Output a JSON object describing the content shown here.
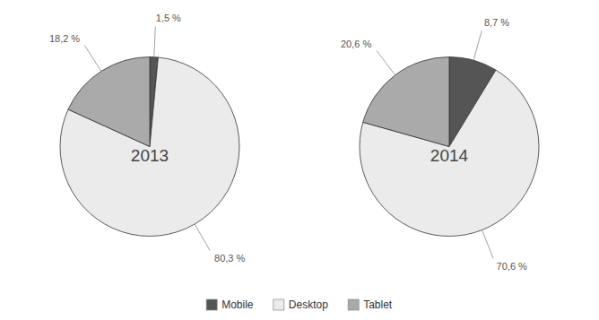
{
  "chart_data": [
    {
      "type": "pie",
      "title": "2013",
      "categories": [
        "Mobile",
        "Desktop",
        "Tablet"
      ],
      "values": [
        1.5,
        80.3,
        18.2
      ],
      "value_labels": [
        "1,5 %",
        "80,3 %",
        "18,2 %"
      ],
      "colors": [
        "#555555",
        "#ebebeb",
        "#aaaaaa"
      ],
      "data_labels": true,
      "legend": "bottom"
    },
    {
      "type": "pie",
      "title": "2014",
      "categories": [
        "Mobile",
        "Desktop",
        "Tablet"
      ],
      "values": [
        8.7,
        70.6,
        20.6
      ],
      "value_labels": [
        "8,7 %",
        "70,6 %",
        "20,6 %"
      ],
      "colors": [
        "#555555",
        "#ebebeb",
        "#aaaaaa"
      ],
      "data_labels": true
    }
  ]
}
